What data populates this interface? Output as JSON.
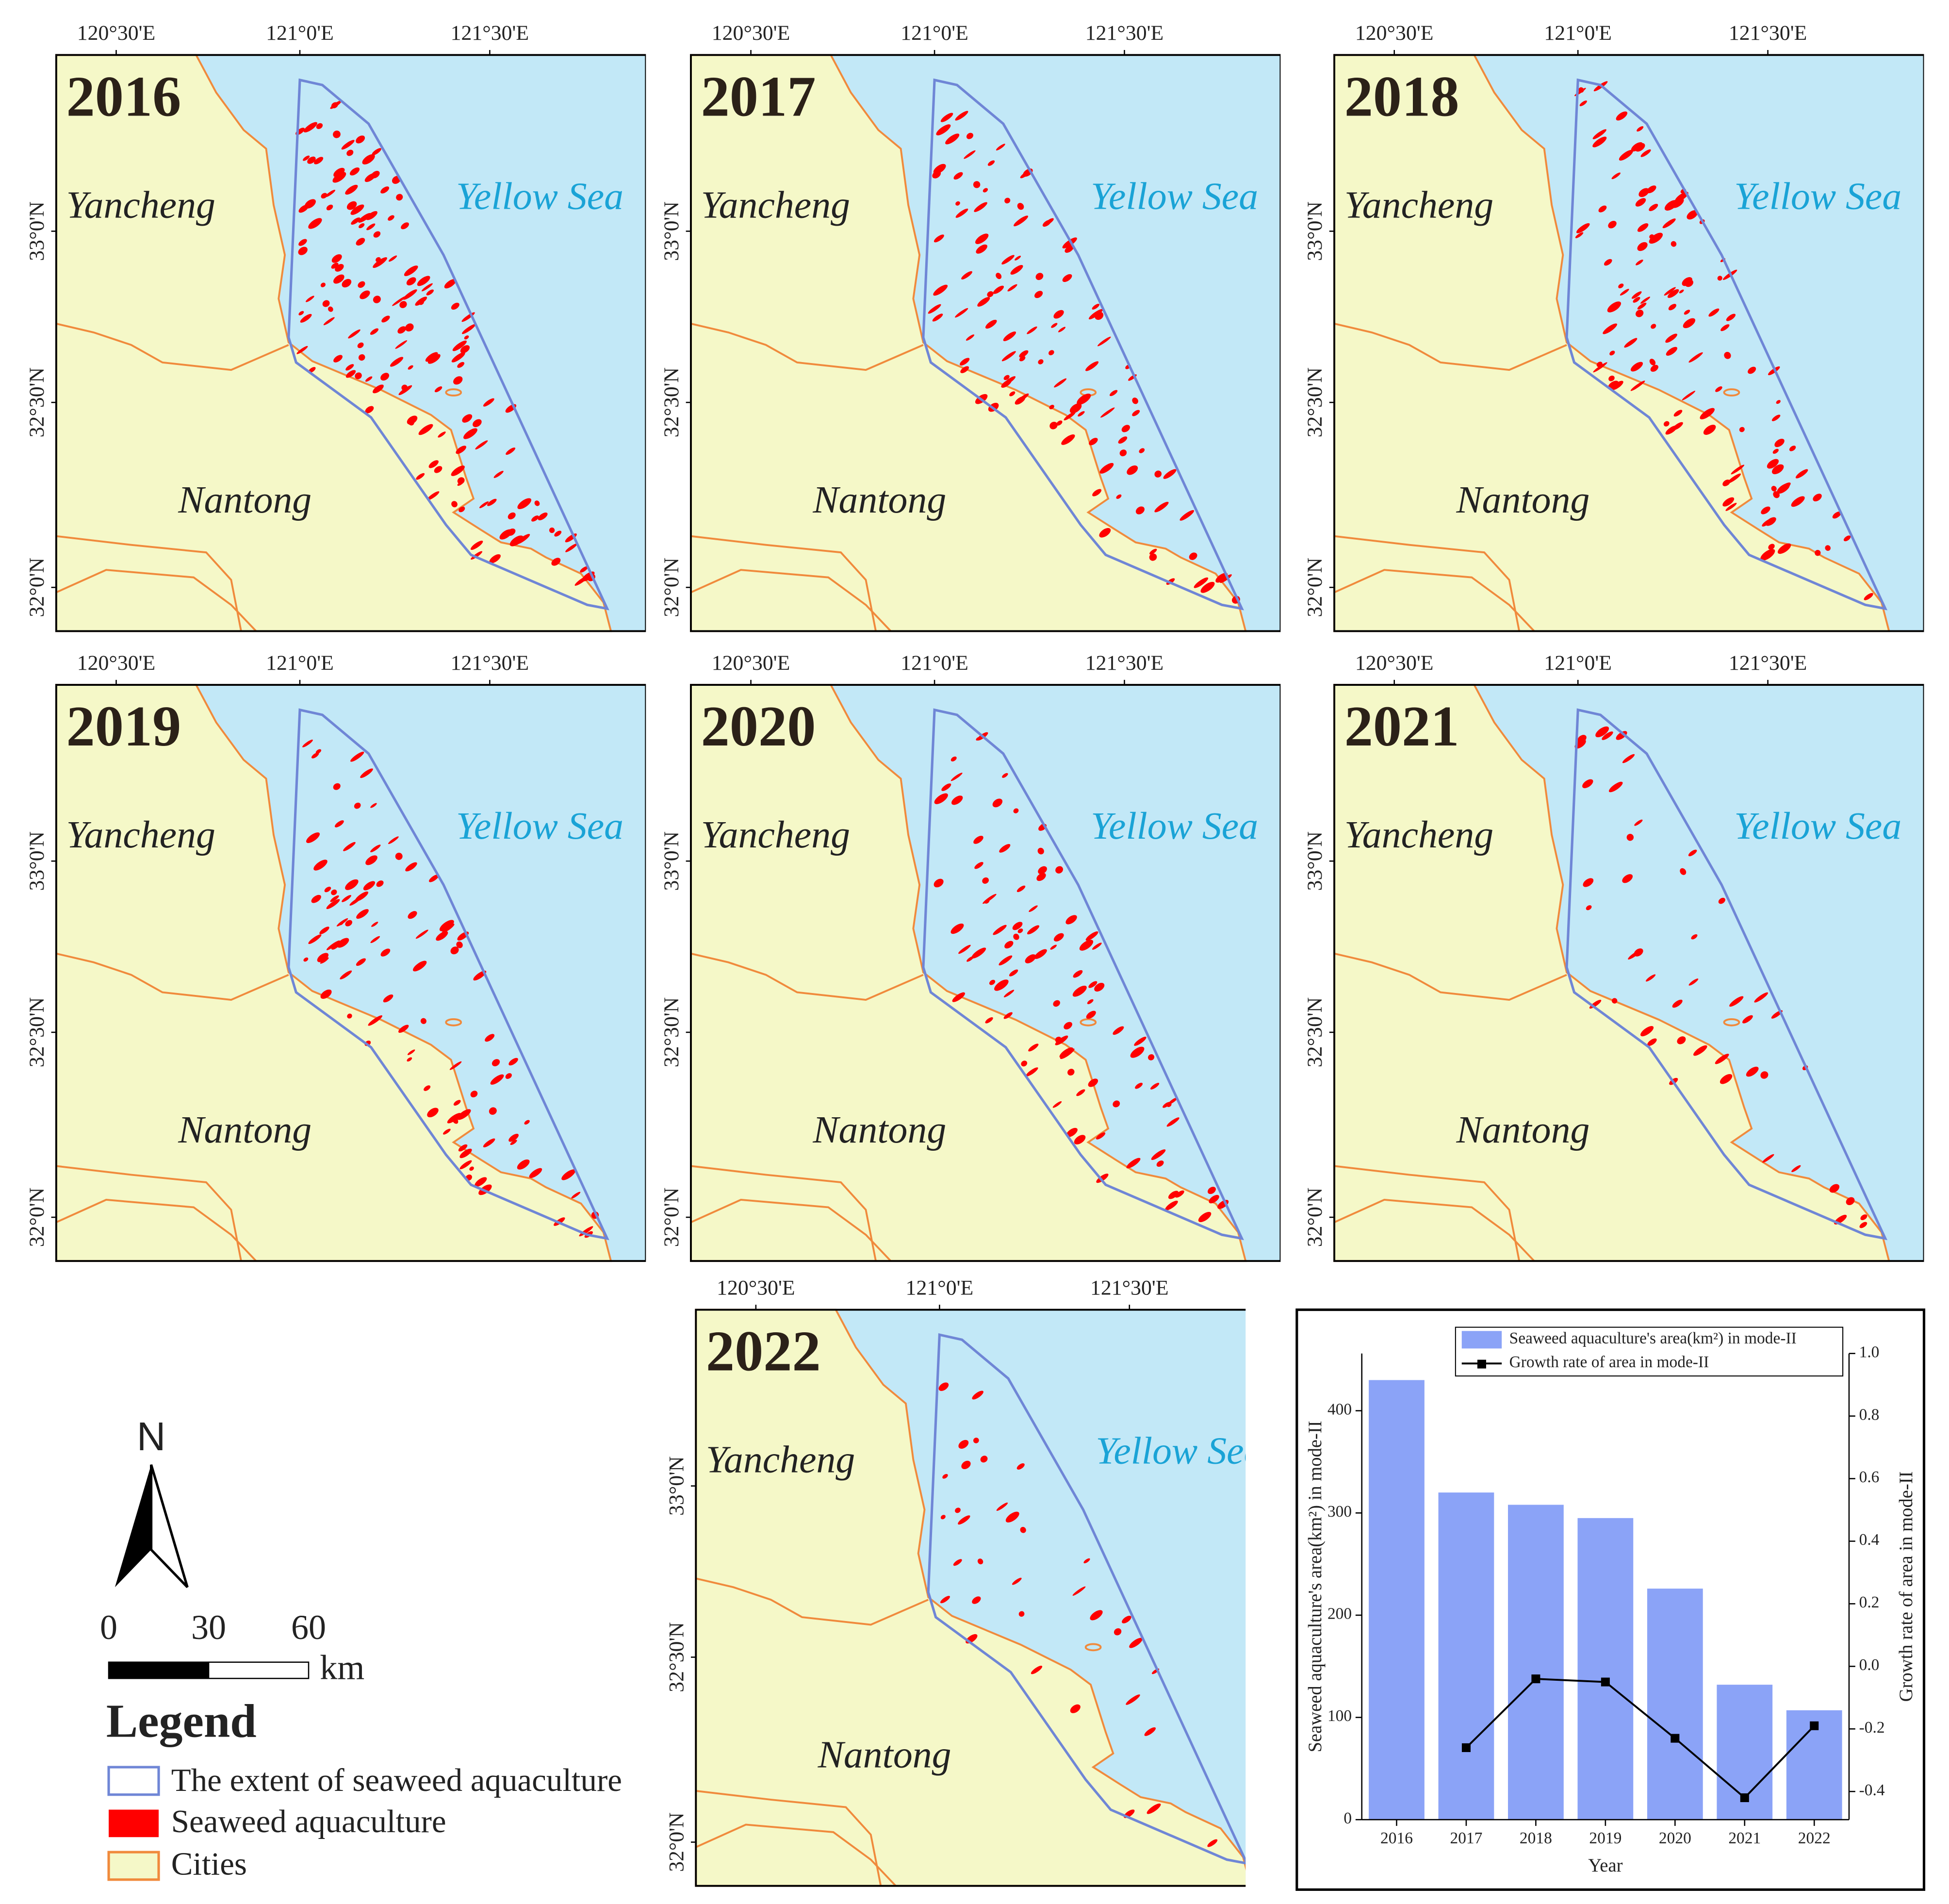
{
  "maps": [
    {
      "year": "2016"
    },
    {
      "year": "2017"
    },
    {
      "year": "2018"
    },
    {
      "year": "2019"
    },
    {
      "year": "2020"
    },
    {
      "year": "2021"
    },
    {
      "year": "2022"
    }
  ],
  "map_labels": {
    "lon": [
      "120°30'E",
      "121°0'E",
      "121°30'E"
    ],
    "lat": [
      "33°0'N",
      "32°30'N",
      "32°0'N"
    ],
    "city_north": "Yancheng",
    "sea": "Yellow Sea",
    "city_south": "Nantong"
  },
  "legend": {
    "north": "N",
    "scale_labels": [
      "0",
      "30",
      "60"
    ],
    "scale_unit": "km",
    "title": "Legend",
    "items": [
      "The extent of seaweed aquaculture",
      "Seaweed aquaculture",
      "Cities"
    ]
  },
  "chart_data": {
    "type": "bar",
    "categories": [
      "2016",
      "2017",
      "2018",
      "2019",
      "2020",
      "2021",
      "2022"
    ],
    "series": [
      {
        "name": "Seaweed aquaculture's area(km²) in mode-II",
        "type": "bar",
        "color": "#8ba3f7",
        "values": [
          430,
          320,
          308,
          295,
          226,
          132,
          107
        ]
      },
      {
        "name": "Growth rate of area in mode-II",
        "type": "line",
        "color": "#000000",
        "axis": "y2",
        "values": [
          null,
          -0.26,
          -0.04,
          -0.05,
          -0.23,
          -0.42,
          -0.19
        ]
      }
    ],
    "xlabel": "Year",
    "ylabel": "Seaweed aquaculture's area(km²) in mode-II",
    "y2label": "Growth rate of area in mode-II",
    "ylim": [
      0,
      456
    ],
    "yticks": [
      0,
      100,
      200,
      300,
      400
    ],
    "y2lim": [
      -0.49,
      1.0
    ],
    "y2ticks": [
      -0.4,
      -0.2,
      {
        "value": 0,
        "label": "0.0"
      },
      0.2,
      0.4,
      0.6,
      0.8,
      {
        "value": 1,
        "label": "1.0"
      }
    ]
  }
}
